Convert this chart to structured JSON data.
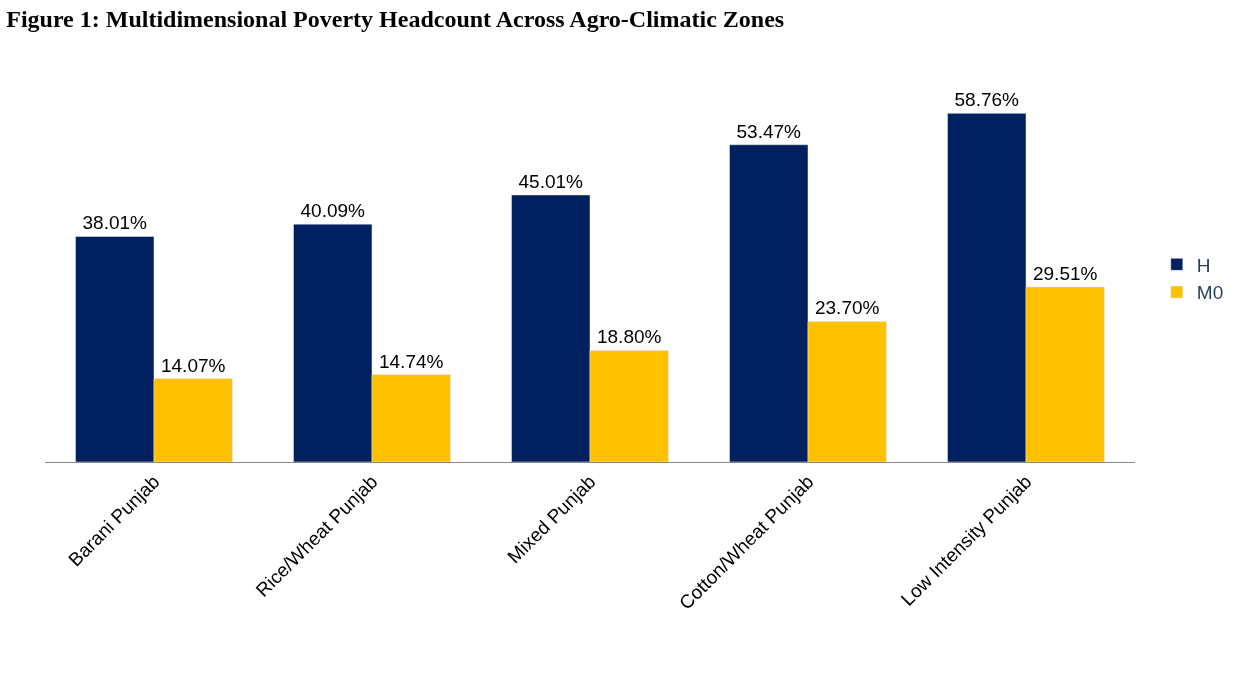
{
  "chart_data": {
    "type": "bar",
    "title": "Figure 1: Multidimensional Poverty Headcount Across Agro-Climatic Zones",
    "categories": [
      "Barani Punjab",
      "Rice/Wheat Punjab",
      "Mixed Punjab",
      "Cotton/Wheat Punjab",
      "Low Intensity Punjab"
    ],
    "series": [
      {
        "name": "H",
        "color": "#002060",
        "values": [
          38.01,
          40.09,
          45.01,
          53.47,
          58.76
        ],
        "value_labels": [
          "38.01%",
          "40.09%",
          "45.01%",
          "53.47%",
          "58.76%"
        ]
      },
      {
        "name": "M0",
        "color": "#ffc000",
        "values": [
          14.07,
          14.74,
          18.8,
          23.7,
          29.51
        ],
        "value_labels": [
          "14.07%",
          "14.74%",
          "18.80%",
          "23.70%",
          "29.51%"
        ]
      }
    ],
    "legend": "right"
  }
}
